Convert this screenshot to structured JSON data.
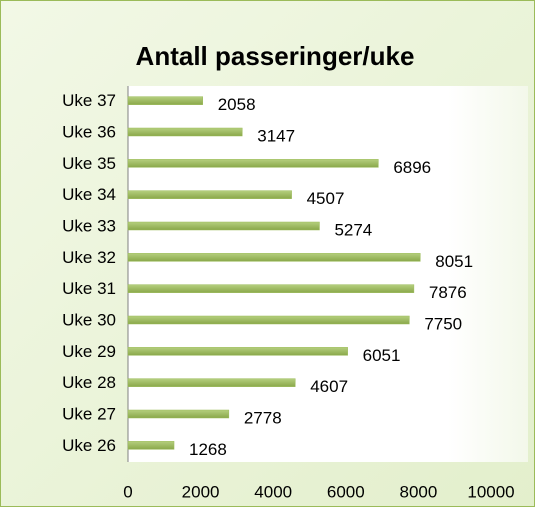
{
  "chart_data": {
    "type": "bar",
    "orientation": "horizontal",
    "title": "Antall passeringer/uke",
    "categories": [
      "Uke 26",
      "Uke 27",
      "Uke 28",
      "Uke 29",
      "Uke 30",
      "Uke 31",
      "Uke 32",
      "Uke 33",
      "Uke 34",
      "Uke 35",
      "Uke 36",
      "Uke 37"
    ],
    "values": [
      1268,
      2778,
      4607,
      6051,
      7750,
      7876,
      8051,
      5274,
      4507,
      6896,
      3147,
      2058
    ],
    "color": "#9bbb59",
    "xlim": [
      0,
      10000
    ],
    "xticks": [
      0,
      2000,
      4000,
      6000,
      8000,
      10000
    ],
    "grid": false
  }
}
